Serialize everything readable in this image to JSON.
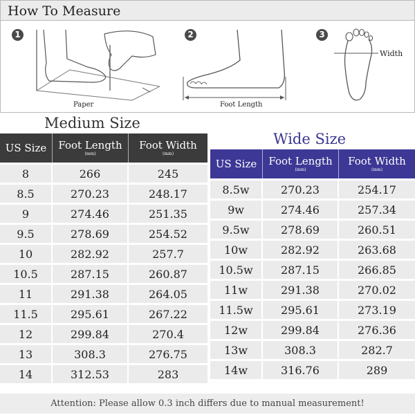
{
  "how_to_measure": {
    "title": "How To Measure",
    "steps": [
      {
        "number": "1",
        "caption": "Paper"
      },
      {
        "number": "2",
        "caption": "Foot Length"
      },
      {
        "number": "3",
        "caption": "Width"
      }
    ]
  },
  "medium_size": {
    "title": "Medium Size",
    "headers": [
      {
        "main": "US Size",
        "sub": ""
      },
      {
        "main": "Foot Length",
        "sub": "(mm)"
      },
      {
        "main": "Foot Width",
        "sub": "(mm)"
      }
    ],
    "rows": [
      [
        "8",
        "266",
        "245"
      ],
      [
        "8.5",
        "270.23",
        "248.17"
      ],
      [
        "9",
        "274.46",
        "251.35"
      ],
      [
        "9.5",
        "278.69",
        "254.52"
      ],
      [
        "10",
        "282.92",
        "257.7"
      ],
      [
        "10.5",
        "287.15",
        "260.87"
      ],
      [
        "11",
        "291.38",
        "264.05"
      ],
      [
        "11.5",
        "295.61",
        "267.22"
      ],
      [
        "12",
        "299.84",
        "270.4"
      ],
      [
        "13",
        "308.3",
        "276.75"
      ],
      [
        "14",
        "312.53",
        "283"
      ]
    ]
  },
  "wide_size": {
    "title": "Wide Size",
    "headers": [
      {
        "main": "US Size",
        "sub": ""
      },
      {
        "main": "Foot Length",
        "sub": "(mm)"
      },
      {
        "main": "Foot Width",
        "sub": "(mm)"
      }
    ],
    "rows": [
      [
        "8.5w",
        "270.23",
        "254.17"
      ],
      [
        "9w",
        "274.46",
        "257.34"
      ],
      [
        "9.5w",
        "278.69",
        "260.51"
      ],
      [
        "10w",
        "282.92",
        "263.68"
      ],
      [
        "10.5w",
        "287.15",
        "266.85"
      ],
      [
        "11w",
        "291.38",
        "270.02"
      ],
      [
        "11.5w",
        "295.61",
        "273.19"
      ],
      [
        "12w",
        "299.84",
        "276.36"
      ],
      [
        "13w",
        "308.3",
        "282.7"
      ],
      [
        "14w",
        "316.76",
        "289"
      ]
    ]
  },
  "attention": "Attention: Please allow 0.3 inch differs due to manual measurement!",
  "colors": {
    "medium_header": "#3b3b3b",
    "wide_header": "#3d3896",
    "cell_background": "#ebebeb"
  }
}
